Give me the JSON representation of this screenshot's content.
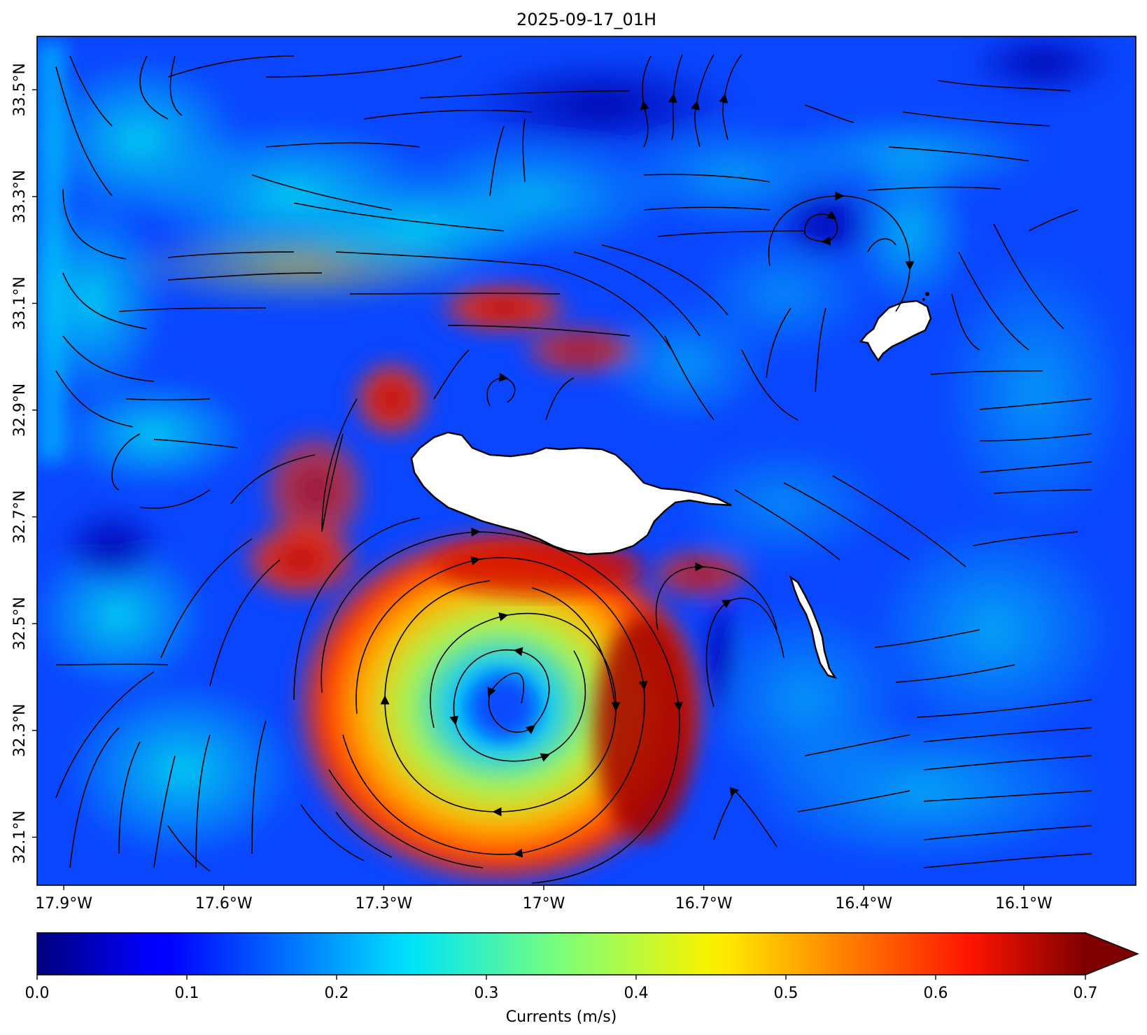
{
  "title": "2025-09-17_01H",
  "map": {
    "lon_range": [
      -17.95,
      -15.89
    ],
    "lat_range": [
      32.01,
      33.6
    ],
    "lon_ticks": [
      {
        "value": -17.9,
        "label": "17.9°W"
      },
      {
        "value": -17.6,
        "label": "17.6°W"
      },
      {
        "value": -17.3,
        "label": "17.3°W"
      },
      {
        "value": -17.0,
        "label": "17°W"
      },
      {
        "value": -16.7,
        "label": "16.7°W"
      },
      {
        "value": -16.4,
        "label": "16.4°W"
      },
      {
        "value": -16.1,
        "label": "16.1°W"
      }
    ],
    "lat_ticks": [
      {
        "value": 33.5,
        "label": "33.5°N"
      },
      {
        "value": 33.3,
        "label": "33.3°N"
      },
      {
        "value": 33.1,
        "label": "33.1°N"
      },
      {
        "value": 32.9,
        "label": "32.9°N"
      },
      {
        "value": 32.7,
        "label": "32.7°N"
      },
      {
        "value": 32.5,
        "label": "32.5°N"
      },
      {
        "value": 32.3,
        "label": "32.3°N"
      },
      {
        "value": 32.1,
        "label": "32.1°N"
      }
    ],
    "features": [
      "madeira-island",
      "porto-santo-island",
      "desertas-islands",
      "cyclonic-eddy",
      "current-streamlines"
    ],
    "colors": {
      "land": "#ffffff",
      "coastline": "#000000",
      "streamline": "#000000",
      "ocean_background": "#0a46ff"
    }
  },
  "colorbar": {
    "label": "Currents (m/s)",
    "min": 0.0,
    "max": 0.7,
    "extend": "max",
    "colormap": "jet",
    "ticks": [
      {
        "value": 0.0,
        "label": "0.0"
      },
      {
        "value": 0.1,
        "label": "0.1"
      },
      {
        "value": 0.2,
        "label": "0.2"
      },
      {
        "value": 0.3,
        "label": "0.3"
      },
      {
        "value": 0.4,
        "label": "0.4"
      },
      {
        "value": 0.5,
        "label": "0.5"
      },
      {
        "value": 0.6,
        "label": "0.6"
      },
      {
        "value": 0.7,
        "label": "0.7"
      }
    ]
  }
}
